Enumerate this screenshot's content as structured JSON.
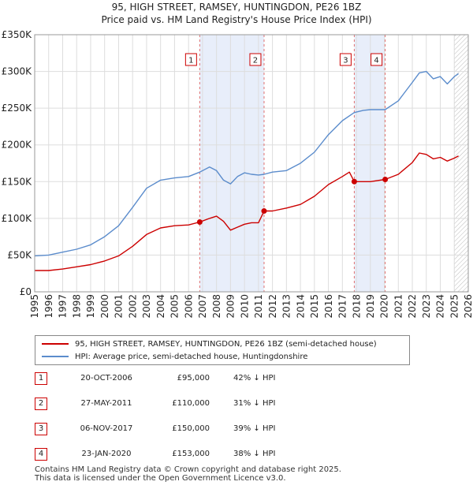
{
  "title_line1": "95, HIGH STREET, RAMSEY, HUNTINGDON, PE26 1BZ",
  "title_line2": "Price paid vs. HM Land Registry's House Price Index (HPI)",
  "legend": {
    "property": "95, HIGH STREET, RAMSEY, HUNTINGDON, PE26 1BZ (semi-detached house)",
    "hpi": "HPI: Average price, semi-detached house, Huntingdonshire"
  },
  "colors": {
    "property": "#cc0000",
    "hpi": "#5b8ccc",
    "shade": "#e8eefa",
    "vline": "#e07070",
    "grid": "#dddddd"
  },
  "chart_data": {
    "type": "line",
    "title": "Price paid vs. HM Land Registry's House Price Index (HPI)",
    "xlim": [
      1995,
      2026
    ],
    "ylim": [
      0,
      350000
    ],
    "ytick_values": [
      0,
      50000,
      100000,
      150000,
      200000,
      250000,
      300000,
      350000
    ],
    "ytick_labels": [
      "£0",
      "£50K",
      "£100K",
      "£150K",
      "£200K",
      "£250K",
      "£300K",
      "£350K"
    ],
    "xtick_values": [
      1995,
      1996,
      1997,
      1998,
      1999,
      2000,
      2001,
      2002,
      2003,
      2004,
      2005,
      2006,
      2007,
      2008,
      2009,
      2010,
      2011,
      2012,
      2013,
      2014,
      2015,
      2016,
      2017,
      2018,
      2019,
      2020,
      2021,
      2022,
      2023,
      2024,
      2025,
      2026
    ],
    "xtick_labels": [
      "1995",
      "1996",
      "1997",
      "1998",
      "1999",
      "2000",
      "2001",
      "2002",
      "2003",
      "2004",
      "2005",
      "2006",
      "2007",
      "2008",
      "2009",
      "2010",
      "2011",
      "2012",
      "2013",
      "2014",
      "2015",
      "2016",
      "2017",
      "2018",
      "2019",
      "2020",
      "2021",
      "2022",
      "2023",
      "2024",
      "2025",
      "2026"
    ],
    "shaded_ranges": [
      [
        2006.8,
        2011.4
      ],
      [
        2017.85,
        2020.06
      ]
    ],
    "forecast_from": 2025.0,
    "series": [
      {
        "name": "95, HIGH STREET, RAMSEY, HUNTINGDON, PE26 1BZ (semi-detached house)",
        "x": [
          1995.0,
          1996.0,
          1997.0,
          1998.0,
          1999.0,
          2000.0,
          2001.0,
          2002.0,
          2003.0,
          2004.0,
          2005.0,
          2006.0,
          2006.8,
          2007.5,
          2008.0,
          2008.5,
          2009.0,
          2009.5,
          2010.0,
          2010.5,
          2011.0,
          2011.4,
          2012.0,
          2013.0,
          2014.0,
          2015.0,
          2016.0,
          2017.0,
          2017.5,
          2017.85,
          2018.5,
          2019.0,
          2020.06,
          2021.0,
          2022.0,
          2022.5,
          2023.0,
          2023.5,
          2024.0,
          2024.5,
          2025.0,
          2025.3
        ],
        "values": [
          29000,
          29000,
          31000,
          34000,
          37000,
          42000,
          49000,
          62000,
          78000,
          87000,
          90000,
          91000,
          95000,
          100000,
          103000,
          96000,
          84000,
          88000,
          92000,
          94000,
          94000,
          110000,
          110000,
          114000,
          119000,
          130000,
          146000,
          157000,
          163000,
          150000,
          150000,
          150000,
          153000,
          160000,
          176000,
          189000,
          187000,
          181000,
          183000,
          178000,
          182000,
          185000
        ]
      },
      {
        "name": "HPI: Average price, semi-detached house, Huntingdonshire",
        "x": [
          1995.0,
          1996.0,
          1997.0,
          1998.0,
          1999.0,
          2000.0,
          2001.0,
          2002.0,
          2003.0,
          2004.0,
          2005.0,
          2006.0,
          2006.8,
          2007.5,
          2008.0,
          2008.5,
          2009.0,
          2009.5,
          2010.0,
          2010.5,
          2011.0,
          2011.4,
          2012.0,
          2013.0,
          2014.0,
          2015.0,
          2016.0,
          2017.0,
          2017.85,
          2018.5,
          2019.0,
          2020.06,
          2021.0,
          2022.0,
          2022.5,
          2023.0,
          2023.5,
          2024.0,
          2024.5,
          2025.0,
          2025.3
        ],
        "values": [
          49000,
          50000,
          54000,
          58000,
          64000,
          75000,
          90000,
          115000,
          141000,
          152000,
          155000,
          157000,
          163000,
          170000,
          165000,
          152000,
          147000,
          157000,
          162000,
          160000,
          159000,
          160000,
          163000,
          165000,
          175000,
          190000,
          214000,
          233000,
          244000,
          247000,
          248000,
          248000,
          260000,
          285000,
          298000,
          300000,
          290000,
          293000,
          283000,
          293000,
          297000
        ]
      }
    ],
    "sales": [
      {
        "num": "1",
        "x": 2006.8,
        "price": 95000
      },
      {
        "num": "2",
        "x": 2011.4,
        "price": 110000
      },
      {
        "num": "3",
        "x": 2017.85,
        "price": 150000
      },
      {
        "num": "4",
        "x": 2020.06,
        "price": 153000
      }
    ]
  },
  "transactions": [
    {
      "num": "1",
      "date": "20-OCT-2006",
      "price": "£95,000",
      "hpi": "42% ↓ HPI"
    },
    {
      "num": "2",
      "date": "27-MAY-2011",
      "price": "£110,000",
      "hpi": "31% ↓ HPI"
    },
    {
      "num": "3",
      "date": "06-NOV-2017",
      "price": "£150,000",
      "hpi": "39% ↓ HPI"
    },
    {
      "num": "4",
      "date": "23-JAN-2020",
      "price": "£153,000",
      "hpi": "38% ↓ HPI"
    }
  ],
  "footer_line1": "Contains HM Land Registry data © Crown copyright and database right 2025.",
  "footer_line2": "This data is licensed under the Open Government Licence v3.0."
}
